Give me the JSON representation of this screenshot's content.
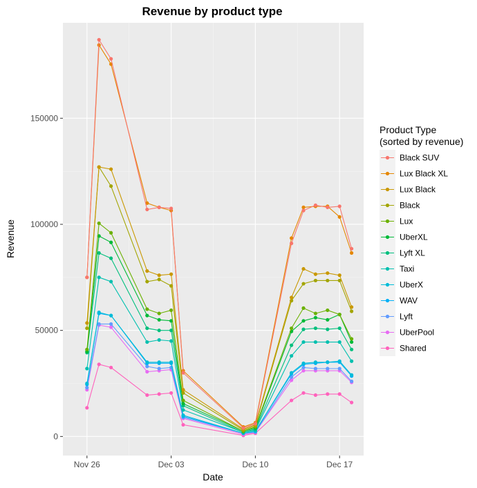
{
  "chart_data": {
    "type": "line",
    "title": "Revenue by product type",
    "xlabel": "Date",
    "ylabel": "Revenue",
    "x_axis": {
      "type": "date",
      "range": [
        "2018-11-24",
        "2018-12-19"
      ],
      "ticks": [
        {
          "date": "2018-11-26",
          "label": "Nov 26"
        },
        {
          "date": "2018-12-03",
          "label": "Dec 03"
        },
        {
          "date": "2018-12-10",
          "label": "Dec 10"
        },
        {
          "date": "2018-12-17",
          "label": "Dec 17"
        }
      ]
    },
    "y_axis": {
      "range": [
        -9000,
        195000
      ],
      "ticks": [
        0,
        50000,
        100000,
        150000
      ],
      "tick_labels": [
        "0",
        "50000",
        "100000",
        "150000"
      ]
    },
    "grid": true,
    "legend": {
      "position": "right",
      "title_lines": [
        "Product Type",
        "(sorted by revenue)"
      ]
    },
    "x": [
      "2018-11-26",
      "2018-11-27",
      "2018-11-28",
      "2018-12-01",
      "2018-12-02",
      "2018-12-03",
      "2018-12-04",
      "2018-12-09",
      "2018-12-10",
      "2018-12-13",
      "2018-12-14",
      "2018-12-15",
      "2018-12-16",
      "2018-12-17",
      "2018-12-18"
    ],
    "series": [
      {
        "name": "Black SUV",
        "color": "#F8766D",
        "values": [
          75000,
          187000,
          178000,
          107000,
          108000,
          107500,
          30000,
          4000,
          6000,
          91000,
          106500,
          109000,
          108000,
          108500,
          88500
        ]
      },
      {
        "name": "Lux Black XL",
        "color": "#E58700",
        "values": [
          75000,
          184500,
          175500,
          110000,
          108000,
          106500,
          31000,
          4500,
          6500,
          93500,
          108000,
          108500,
          108500,
          103500,
          86500
        ]
      },
      {
        "name": "Lux Black",
        "color": "#C99800",
        "values": [
          53500,
          127000,
          126000,
          78000,
          76000,
          76500,
          22000,
          3500,
          5500,
          65500,
          79000,
          76500,
          77000,
          76000,
          61000
        ]
      },
      {
        "name": "Black",
        "color": "#A3A500",
        "values": [
          51000,
          127000,
          118000,
          73000,
          74000,
          71000,
          20500,
          3000,
          5000,
          64000,
          72000,
          73500,
          73500,
          73500,
          59000
        ]
      },
      {
        "name": "Lux",
        "color": "#6BB100",
        "values": [
          41000,
          100500,
          96000,
          60000,
          58000,
          59500,
          17000,
          2500,
          4500,
          51000,
          60500,
          58000,
          59500,
          57500,
          46000
        ]
      },
      {
        "name": "UberXL",
        "color": "#00BA38",
        "values": [
          40000,
          94500,
          91500,
          57000,
          55000,
          54500,
          15500,
          2500,
          4000,
          49500,
          54500,
          56000,
          55000,
          57500,
          44500
        ]
      },
      {
        "name": "Lyft XL",
        "color": "#00BF7D",
        "values": [
          39500,
          86500,
          84000,
          51000,
          50000,
          50000,
          14500,
          2000,
          3500,
          43000,
          50500,
          51000,
          50500,
          51000,
          41000
        ]
      },
      {
        "name": "Taxi",
        "color": "#00C0AF",
        "values": [
          32000,
          75000,
          73000,
          44500,
          45500,
          45000,
          12500,
          2000,
          3000,
          38000,
          44500,
          44500,
          44500,
          44500,
          35500
        ]
      },
      {
        "name": "UberX",
        "color": "#00BCD8",
        "values": [
          25000,
          58500,
          57000,
          35000,
          35000,
          35000,
          10000,
          1500,
          2500,
          30000,
          34500,
          35000,
          35000,
          35500,
          29000
        ]
      },
      {
        "name": "WAV",
        "color": "#00B0F6",
        "values": [
          24500,
          58000,
          57000,
          34500,
          34500,
          34500,
          9500,
          1500,
          2500,
          29500,
          34000,
          34500,
          35000,
          35000,
          28500
        ]
      },
      {
        "name": "Lyft",
        "color": "#619CFF",
        "values": [
          23000,
          53000,
          53000,
          33000,
          32000,
          32500,
          9000,
          1500,
          2000,
          28000,
          32500,
          32000,
          32000,
          32000,
          26000
        ]
      },
      {
        "name": "UberPool",
        "color": "#E76BF3",
        "values": [
          22000,
          52500,
          51500,
          30500,
          31000,
          31500,
          8500,
          1000,
          2000,
          26500,
          31000,
          31000,
          31000,
          31000,
          25500
        ]
      },
      {
        "name": "Shared",
        "color": "#FF62BC",
        "values": [
          13500,
          34000,
          32500,
          19500,
          20000,
          20500,
          5500,
          500,
          1500,
          17000,
          20500,
          19500,
          20000,
          20000,
          16000
        ]
      }
    ]
  }
}
